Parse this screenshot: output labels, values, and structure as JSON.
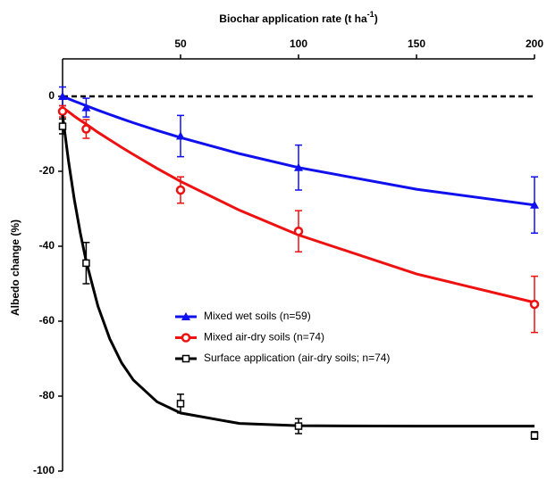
{
  "chart_data": {
    "type": "line",
    "x_label": "Biochar application rate (t ha",
    "x_label_sup": "-1",
    "x_label_end": ")",
    "y_label": "Albedo change (%)",
    "xlim": [
      0,
      200
    ],
    "xticks": [
      50,
      100,
      150,
      200
    ],
    "ylim": [
      -100,
      10
    ],
    "yticks": [
      0,
      -20,
      -40,
      -60,
      -80,
      -100
    ],
    "reference_line": 0,
    "legend": "bottom-center",
    "fit_x": [
      0,
      2.5,
      5,
      7.5,
      10,
      15,
      20,
      25,
      30,
      40,
      50,
      75,
      100,
      150,
      200
    ],
    "series": [
      {
        "name": "Mixed wet soils (n=59)",
        "color": "#1010ee",
        "marker": "triangle",
        "x": [
          0,
          10,
          50,
          100,
          200
        ],
        "values": [
          0,
          -3,
          -10.6,
          -19,
          -29
        ],
        "errors": [
          2.5,
          2.5,
          5.5,
          6,
          7.5
        ],
        "fit": [
          0,
          -0.64,
          -1.27,
          -1.88,
          -2.5,
          -3.7,
          -4.85,
          -5.96,
          -7.05,
          -9.1,
          -11,
          -15.3,
          -19,
          -24.8,
          -29
        ]
      },
      {
        "name": "Mixed air-dry soils (n=74)",
        "color": "#ee1111",
        "marker": "circle",
        "x": [
          0,
          10,
          50,
          100,
          200
        ],
        "values": [
          -4,
          -8.7,
          -25,
          -36,
          -55.5
        ],
        "errors": [
          1.5,
          2.5,
          3.5,
          5.5,
          7.5
        ],
        "fit": [
          -3,
          -4.1,
          -5.3,
          -6.4,
          -7.4,
          -9.6,
          -11.6,
          -13.6,
          -15.5,
          -19.2,
          -22.7,
          -30.4,
          -37,
          -47.4,
          -55
        ]
      },
      {
        "name": "Surface application (air-dry soils; n=74)",
        "color": "#000000",
        "marker": "square",
        "x": [
          0,
          10,
          50,
          100,
          200
        ],
        "values": [
          -8,
          -44.5,
          -82,
          -88,
          -90.5
        ],
        "errors": [
          2,
          5.5,
          2.5,
          2,
          1
        ],
        "fit": [
          -5,
          -17.2,
          -27.6,
          -36.4,
          -44,
          -56,
          -64.7,
          -71.1,
          -75.7,
          -81.5,
          -84.5,
          -87.3,
          -87.9,
          -88,
          -88
        ]
      }
    ]
  }
}
